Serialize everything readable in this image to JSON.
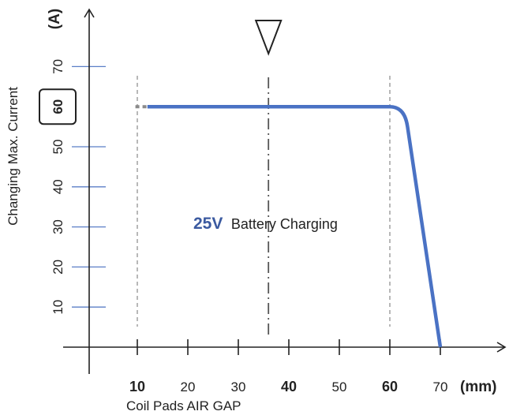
{
  "chart_data": {
    "type": "line",
    "x": [
      12,
      60,
      62,
      63.5,
      70
    ],
    "series": [
      {
        "values": [
          60,
          60,
          59,
          55,
          0
        ]
      }
    ],
    "dotted_lead_in": {
      "x": [
        9,
        12
      ],
      "y": [
        60,
        60
      ]
    },
    "xlim": [
      0,
      72
    ],
    "ylim": [
      0,
      80
    ],
    "x_ticks": [
      10,
      20,
      30,
      40,
      50,
      60,
      70
    ],
    "x_ticks_bold": [
      10,
      40,
      60
    ],
    "x_tick_labels": [
      "10",
      "20",
      "30",
      "40",
      "50",
      "60",
      "70"
    ],
    "y_ticks": [
      10,
      20,
      30,
      40,
      50,
      60,
      70
    ],
    "y_tick_labels": [
      "10",
      "20",
      "30",
      "40",
      "50",
      "60",
      "70"
    ],
    "highlight_y": 60,
    "xlabel": "Coil Pads AIR GAP",
    "x_unit": "(mm)",
    "ylabel": "Changing Max. Current",
    "y_unit": "(A)",
    "annotation_value": "25V",
    "annotation_text": "Battery Charging",
    "vertical_dashed_lines": [
      10,
      60
    ],
    "vertical_dashdot_line": 35.5,
    "colors": {
      "series": "#4a72c4",
      "annotation": "#3b5aa0",
      "ygrid_tick": "#5b7fc7",
      "axis": "#222222",
      "dashed": "#888888",
      "dashdot": "#555555"
    }
  }
}
